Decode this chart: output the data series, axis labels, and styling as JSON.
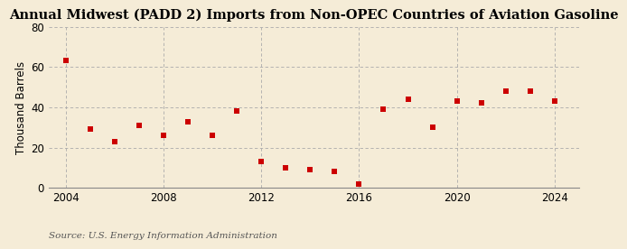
{
  "title": "Annual Midwest (PADD 2) Imports from Non-OPEC Countries of Aviation Gasoline",
  "ylabel": "Thousand Barrels",
  "source": "Source: U.S. Energy Information Administration",
  "background_color": "#f5ecd7",
  "plot_bg_color": "#f5ecd7",
  "marker_color": "#cc0000",
  "grid_color_h": "#aaaaaa",
  "grid_color_v": "#aaaaaa",
  "years": [
    2004,
    2005,
    2006,
    2007,
    2008,
    2009,
    2010,
    2011,
    2012,
    2013,
    2014,
    2015,
    2016,
    2017,
    2018,
    2019,
    2020,
    2021,
    2022,
    2023,
    2024
  ],
  "values": [
    63,
    29,
    23,
    31,
    26,
    33,
    26,
    38,
    13,
    10,
    9,
    8,
    2,
    39,
    44,
    30,
    43,
    42,
    48,
    48,
    43
  ],
  "xlim": [
    2003.3,
    2025.0
  ],
  "ylim": [
    0,
    80
  ],
  "yticks": [
    0,
    20,
    40,
    60,
    80
  ],
  "xticks": [
    2004,
    2008,
    2012,
    2016,
    2020,
    2024
  ],
  "title_fontsize": 10.5,
  "axis_tick_fontsize": 8.5,
  "ylabel_fontsize": 8.5,
  "source_fontsize": 7.5,
  "marker_size": 16
}
